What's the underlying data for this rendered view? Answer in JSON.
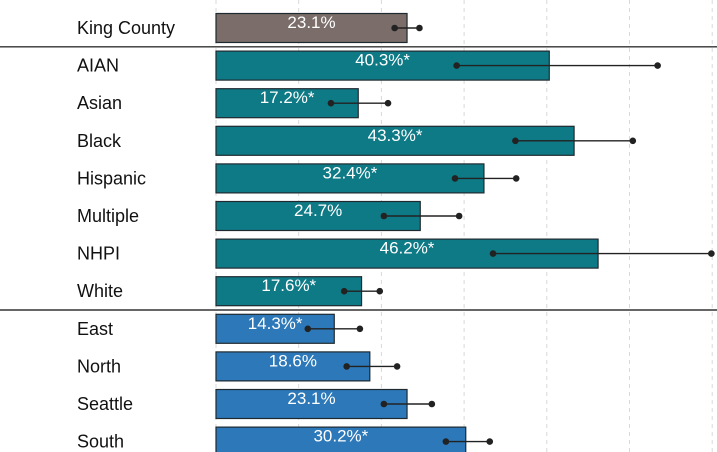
{
  "chart_data": {
    "type": "bar",
    "orientation": "horizontal",
    "title": "",
    "xlabel": "",
    "ylabel": "",
    "xlim": [
      0,
      60
    ],
    "grid": "vertical-dashed",
    "groups": [
      {
        "color": "#7a6d6a",
        "rows": [
          {
            "category": "King County",
            "value": 23.1,
            "label": "23.1%",
            "ci_low": 21.6,
            "ci_high": 24.6
          }
        ]
      },
      {
        "color": "#0e7a86",
        "rows": [
          {
            "category": "AIAN",
            "value": 40.3,
            "label": "40.3%*",
            "ci_low": 29.1,
            "ci_high": 53.4
          },
          {
            "category": "Asian",
            "value": 17.2,
            "label": "17.2%*",
            "ci_low": 13.9,
            "ci_high": 20.8
          },
          {
            "category": "Black",
            "value": 43.3,
            "label": "43.3%*",
            "ci_low": 36.2,
            "ci_high": 50.4
          },
          {
            "category": "Hispanic",
            "value": 32.4,
            "label": "32.4%*",
            "ci_low": 28.9,
            "ci_high": 36.3
          },
          {
            "category": "Multiple",
            "value": 24.7,
            "label": "24.7%",
            "ci_low": 20.3,
            "ci_high": 29.4
          },
          {
            "category": "NHPI",
            "value": 46.2,
            "label": "46.2%*",
            "ci_low": 33.5,
            "ci_high": 59.9
          },
          {
            "category": "White",
            "value": 17.6,
            "label": "17.6%*",
            "ci_low": 15.5,
            "ci_high": 19.8
          }
        ]
      },
      {
        "color": "#2c78b8",
        "rows": [
          {
            "category": "East",
            "value": 14.3,
            "label": "14.3%*",
            "ci_low": 11.1,
            "ci_high": 17.4
          },
          {
            "category": "North",
            "value": 18.6,
            "label": "18.6%",
            "ci_low": 15.8,
            "ci_high": 21.9
          },
          {
            "category": "Seattle",
            "value": 23.1,
            "label": "23.1%",
            "ci_low": 20.3,
            "ci_high": 26.1
          },
          {
            "category": "South",
            "value": 30.2,
            "label": "30.2%*",
            "ci_low": 27.8,
            "ci_high": 33.1
          }
        ]
      }
    ]
  }
}
